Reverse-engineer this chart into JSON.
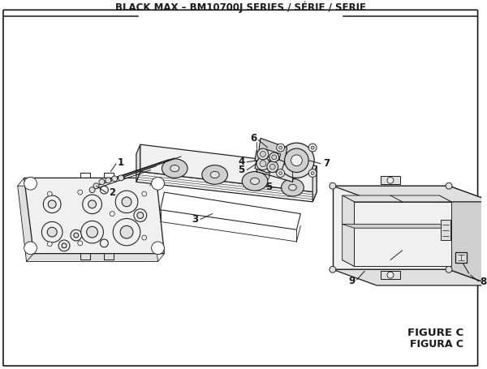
{
  "title": "BLACK MAX – BM10700J SERIES / SÉRIE / SERIE",
  "figure_label": "FIGURE C",
  "figura_label": "FIGURA C",
  "bg_color": "#ffffff",
  "lc": "#1a1a1a",
  "title_fs": 8.5,
  "fig_fs": 9.5,
  "nota_fs": 8.0,
  "part_fs": 8.5
}
